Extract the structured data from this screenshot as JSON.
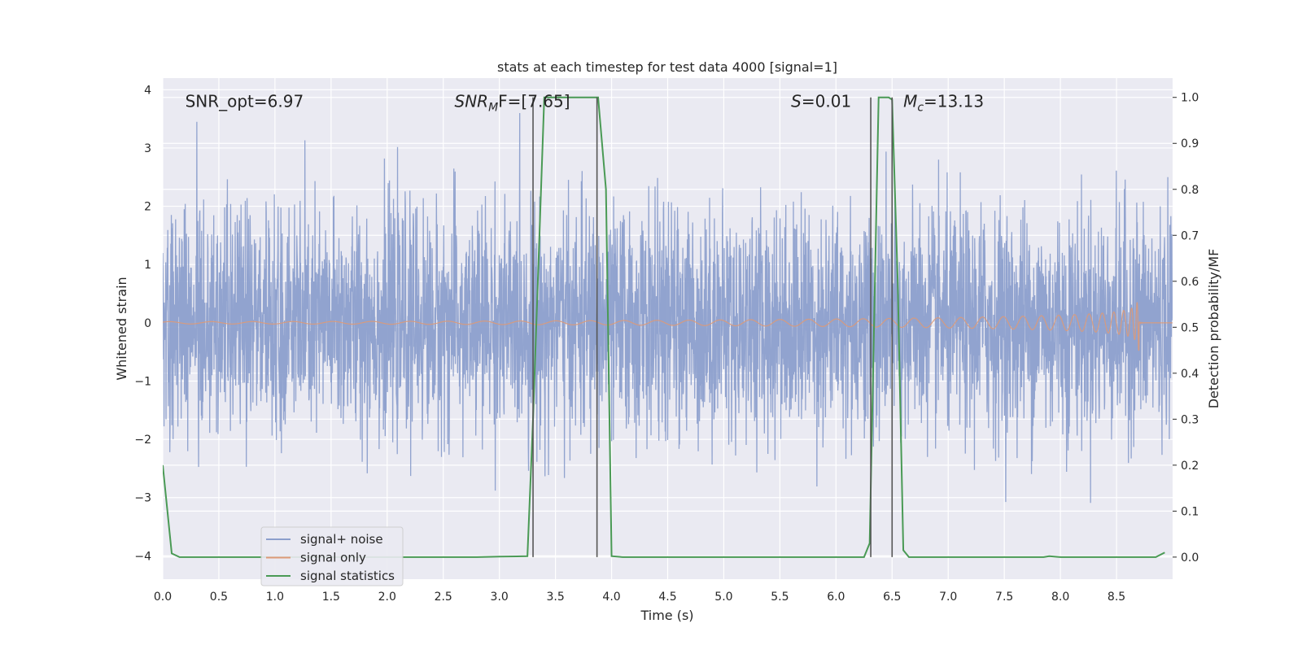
{
  "chart_data": {
    "type": "line",
    "title": "stats at each timestep for test data 4000 [signal=1]",
    "xlabel": "Time (s)",
    "ylabel": "Whitened strain",
    "y2label": "Detection probability/MF",
    "xlim": [
      0.0,
      9.0
    ],
    "ylim": [
      -4.4,
      4.2
    ],
    "y2lim": [
      -0.048,
      1.042
    ],
    "x_ticks": [
      "0.0",
      "0.5",
      "1.0",
      "1.5",
      "2.0",
      "2.5",
      "3.0",
      "3.5",
      "4.0",
      "4.5",
      "5.0",
      "5.5",
      "6.0",
      "6.5",
      "7.0",
      "7.5",
      "8.0",
      "8.5"
    ],
    "y_ticks": [
      "4",
      "3",
      "2",
      "1",
      "0",
      "−1",
      "−2",
      "−3",
      "−4"
    ],
    "y2_ticks": [
      "1.0",
      "0.9",
      "0.8",
      "0.7",
      "0.6",
      "0.5",
      "0.4",
      "0.3",
      "0.2",
      "0.1",
      "0.0"
    ],
    "grid": true,
    "legend_position": "lower-left",
    "annotations": [
      {
        "id": "snr-opt",
        "text": "SNR_opt=6.97",
        "x": 0.2,
        "y": 3.8
      },
      {
        "id": "snr-mf",
        "base": "SNR",
        "sub": "M",
        "rest": "F=[7.65]",
        "x": 2.6,
        "y": 3.8
      },
      {
        "id": "s-stat",
        "base": "S",
        "rest": "=0.01",
        "x": 5.6,
        "y": 3.8
      },
      {
        "id": "mc",
        "base": "M",
        "sub": "c",
        "rest": "=13.13",
        "x": 6.6,
        "y": 3.8
      }
    ],
    "vlines": [
      3.3,
      3.87,
      6.31,
      6.5
    ],
    "vline_range": [
      0.0,
      1.0
    ],
    "series": [
      {
        "name": "signal+ noise",
        "color": "#8c9fcc",
        "description": "whitened strain, noise amplitude ~1 sigma, peaks to about ±3.5"
      },
      {
        "name": "signal only",
        "color": "#dd9a78",
        "chirp": {
          "start": 0.0,
          "end": 8.7,
          "amp_start": 0.02,
          "amp_end": 1.2
        }
      },
      {
        "name": "signal statistics",
        "color": "#4a9a55",
        "axis": "right",
        "x": [
          0.0,
          0.08,
          0.15,
          0.5,
          1.0,
          1.5,
          2.0,
          2.5,
          2.8,
          3.0,
          3.25,
          3.3,
          3.4,
          3.5,
          3.6,
          3.7,
          3.8,
          3.88,
          3.95,
          4.0,
          4.1,
          4.5,
          5.0,
          5.5,
          6.0,
          6.25,
          6.3,
          6.38,
          6.42,
          6.47,
          6.5,
          6.55,
          6.6,
          6.65,
          7.0,
          7.5,
          7.85,
          7.9,
          8.0,
          8.5,
          8.85,
          8.93
        ],
        "y": [
          0.2,
          0.008,
          0.0,
          0.0,
          0.0,
          0.0,
          0.0,
          0.0,
          0.0,
          0.001,
          0.002,
          0.3,
          1.0,
          1.0,
          1.0,
          1.0,
          1.0,
          1.0,
          0.8,
          0.002,
          0.0,
          0.0,
          0.0,
          0.0,
          0.0,
          0.0,
          0.03,
          1.0,
          1.0,
          1.0,
          0.995,
          0.6,
          0.015,
          0.0,
          0.0,
          0.0,
          0.0,
          0.002,
          0.0,
          0.0,
          0.0,
          0.01
        ]
      }
    ]
  }
}
